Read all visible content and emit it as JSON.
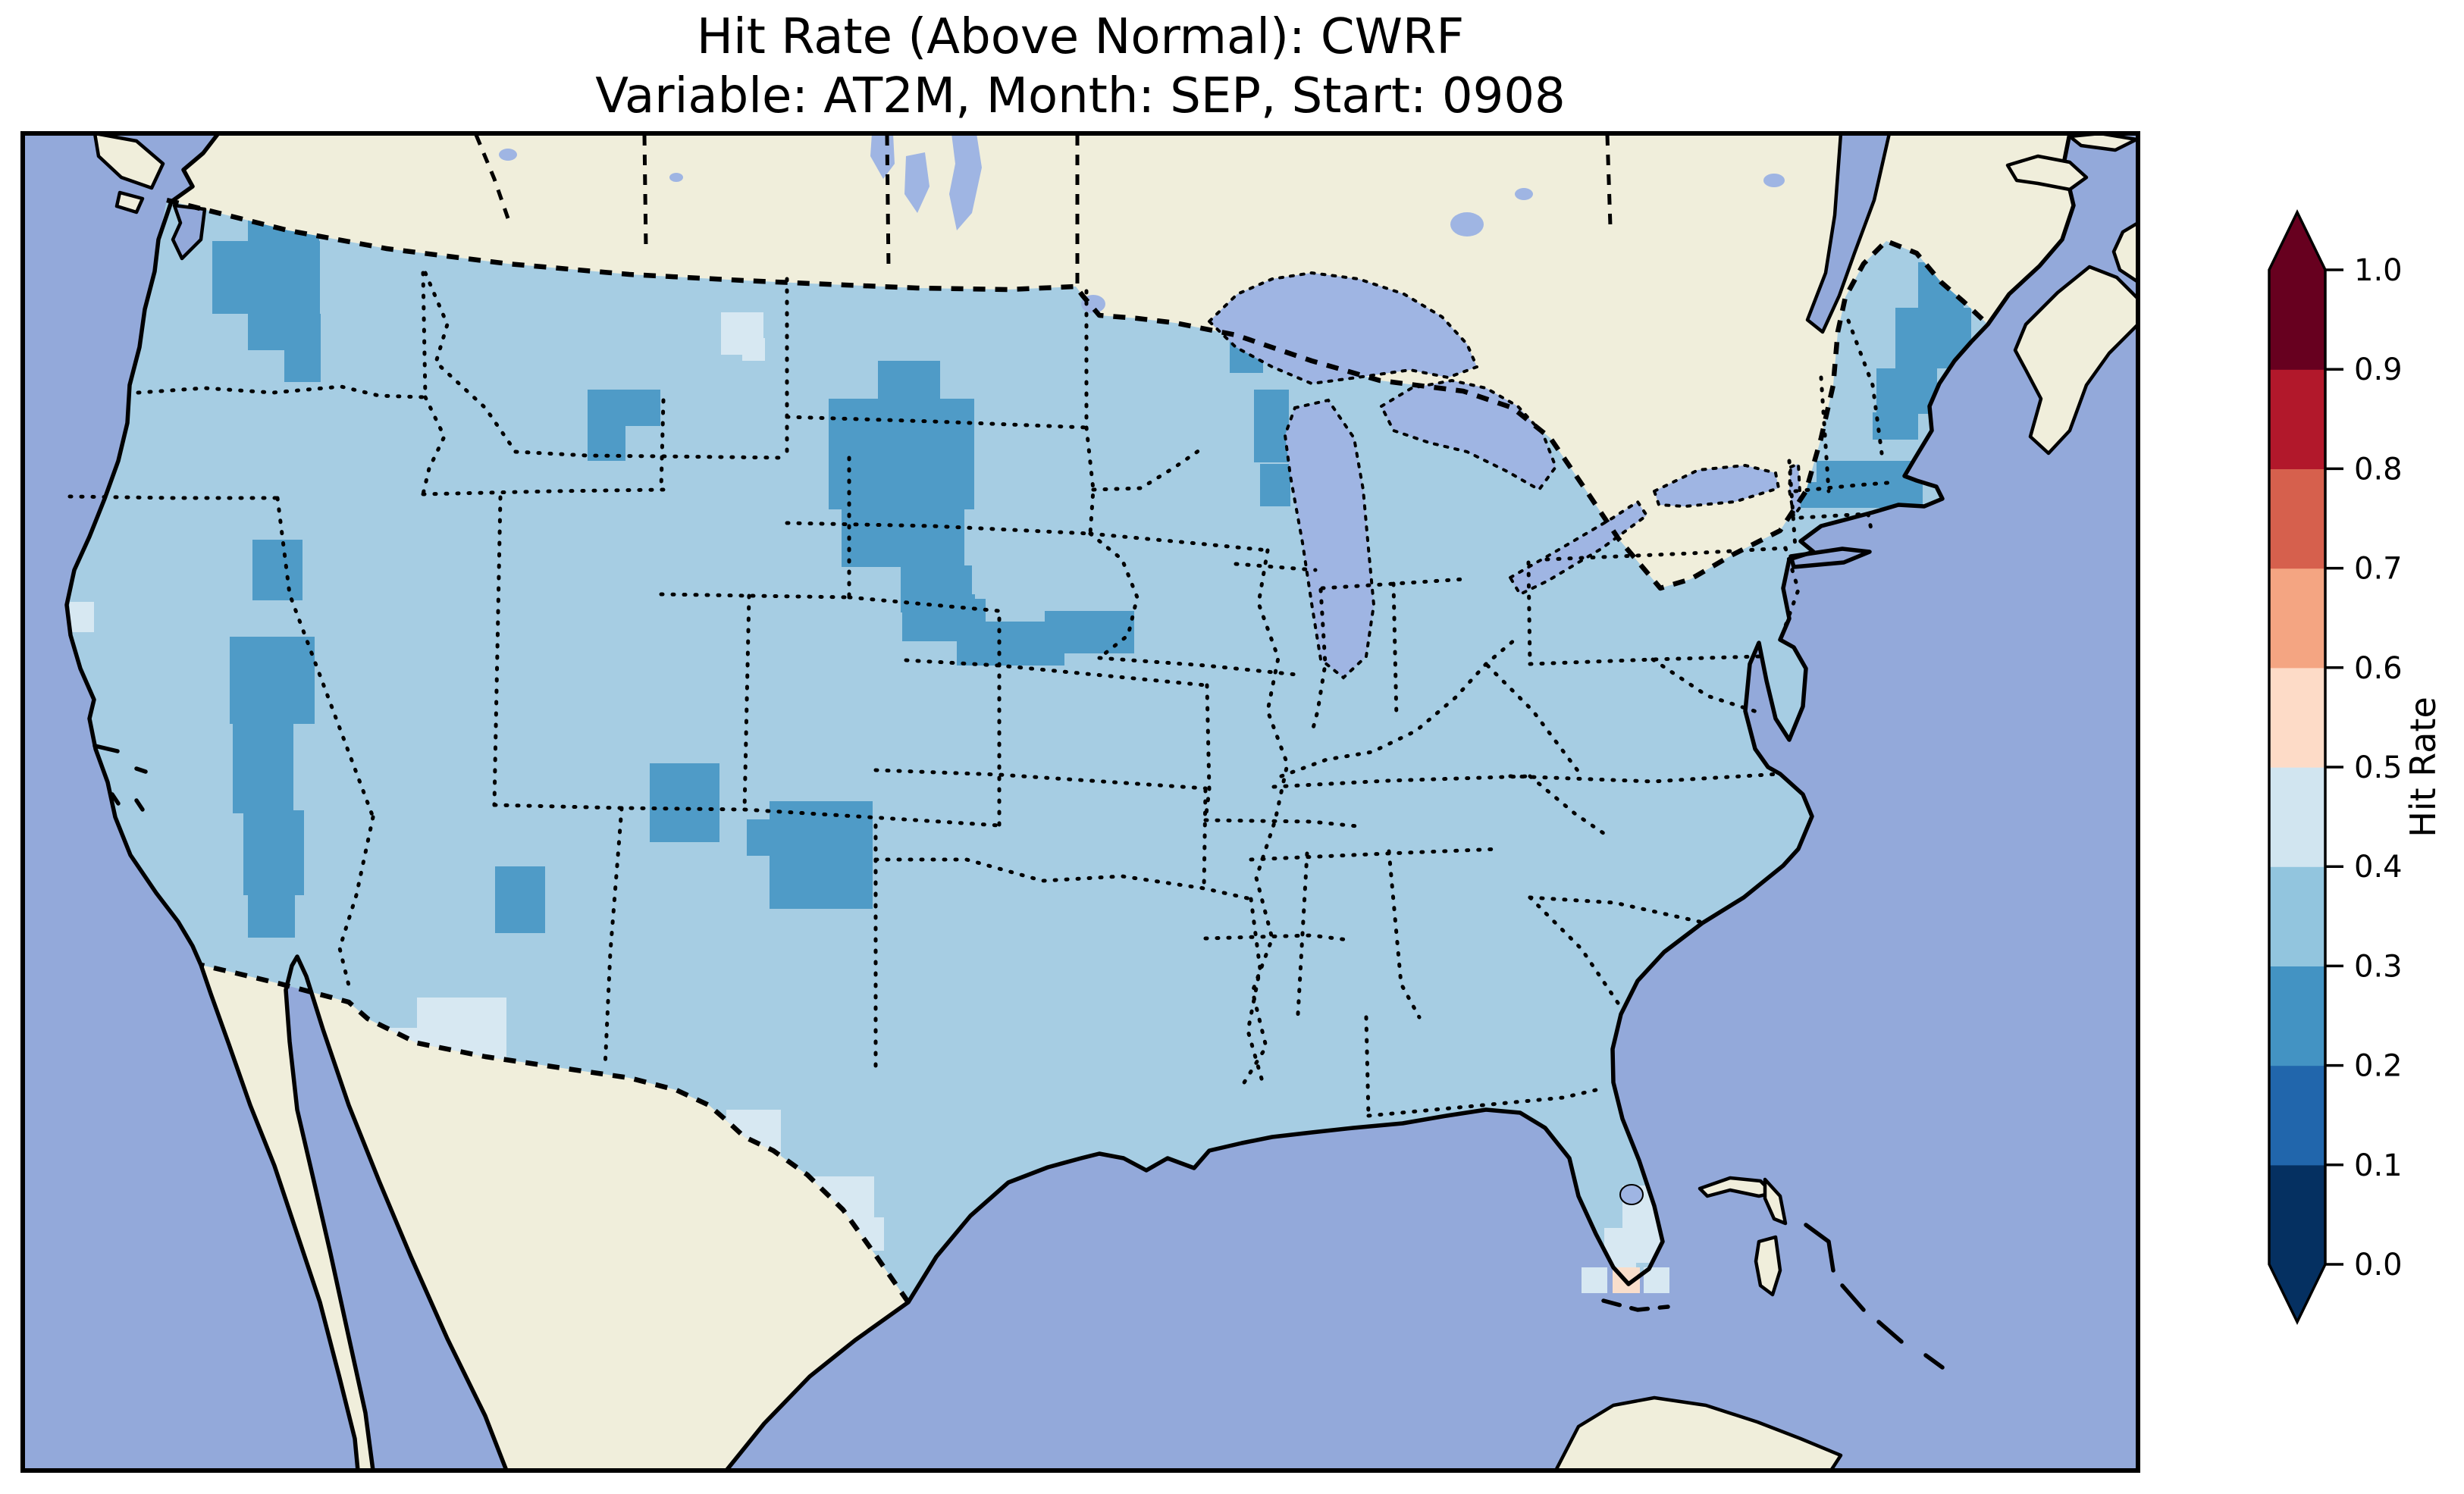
{
  "title": {
    "line1": "Hit Rate (Above Normal): CWRF",
    "line2": "Variable: AT2M, Month: SEP, Start: 0908"
  },
  "colorbar": {
    "label": "Hit Rate",
    "orientation": "vertical",
    "extend": "both",
    "ticks": [
      "1.0",
      "0.9",
      "0.8",
      "0.7",
      "0.6",
      "0.5",
      "0.4",
      "0.3",
      "0.2",
      "0.1",
      "0.0"
    ],
    "tick_values": [
      1.0,
      0.9,
      0.8,
      0.7,
      0.6,
      0.5,
      0.4,
      0.3,
      0.2,
      0.1,
      0.0
    ],
    "band_colors_low_to_high": [
      "#053061",
      "#2166ac",
      "#4393c3",
      "#92c5de",
      "#d1e5f0",
      "#fddbc7",
      "#f4a582",
      "#d6604d",
      "#b2182b",
      "#67001f"
    ],
    "under_arrow_color": "#053061",
    "over_arrow_color": "#67001f",
    "outline_color": "#000000"
  },
  "map": {
    "projection_look": "Lambert-conformal style CONUS map",
    "ocean_color": "#93a9da",
    "land_color": "#f0eedb",
    "lake_color": "#9fb5e3",
    "coastline_color": "#000000",
    "border_line_style": "dotted",
    "palette": {
      "data_03_04": "#a6cde3",
      "data_02_03": "#4f9bc7",
      "data_04_05": "#d7e8f2",
      "data_05_06": "#f9decb"
    },
    "observations": [
      {
        "region": "Most of the contiguous United States",
        "hit_rate_band": "0.3-0.4"
      },
      {
        "region": "Central/eastern Washington",
        "hit_rate_band": "0.2-0.3"
      },
      {
        "region": "Western Montana",
        "hit_rate_band": "0.2-0.3"
      },
      {
        "region": "Western Dakotas",
        "hit_rate_band": "0.2-0.3"
      },
      {
        "region": "Nebraska / Kansas border band",
        "hit_rate_band": "0.2-0.3"
      },
      {
        "region": "Nevada (north and south patches)",
        "hit_rate_band": "0.2-0.3"
      },
      {
        "region": "Four Corners (SE Utah / SW Colorado)",
        "hit_rate_band": "0.2-0.3"
      },
      {
        "region": "Northern Arizona",
        "hit_rate_band": "0.2-0.3"
      },
      {
        "region": "NE New Mexico / SE Colorado",
        "hit_rate_band": "0.2-0.3"
      },
      {
        "region": "NW Wisconsin / western Lake Michigan shore",
        "hit_rate_band": "0.2-0.3"
      },
      {
        "region": "Eastern Maine coast",
        "hit_rate_band": "0.2-0.3"
      },
      {
        "region": "Eastern Massachusetts",
        "hit_rate_band": "0.2-0.3"
      },
      {
        "region": "North-central Montana cell",
        "hit_rate_band": "0.4-0.5"
      },
      {
        "region": "SW New Mexico / Mexico border",
        "hit_rate_band": "0.4-0.5"
      },
      {
        "region": "Big Bend Texas",
        "hit_rate_band": "0.4-0.5"
      },
      {
        "region": "South Texas",
        "hit_rate_band": "0.4-0.5"
      },
      {
        "region": "Southeast Florida",
        "hit_rate_band": "0.4-0.5"
      },
      {
        "region": "Cells near the Florida Keys",
        "hit_rate_band": "0.4-0.6"
      }
    ]
  },
  "chart_data": {
    "type": "heatmap",
    "title": "Hit Rate (Above Normal): CWRF",
    "subtitle": "Variable: AT2M, Month: SEP, Start: 0908",
    "colorbar_label": "Hit Rate",
    "value_range": [
      0.0,
      1.0
    ],
    "colormap": "RdBu_r (10 discrete bands, extend both)",
    "dominant_value_band": "0.3-0.4"
  }
}
